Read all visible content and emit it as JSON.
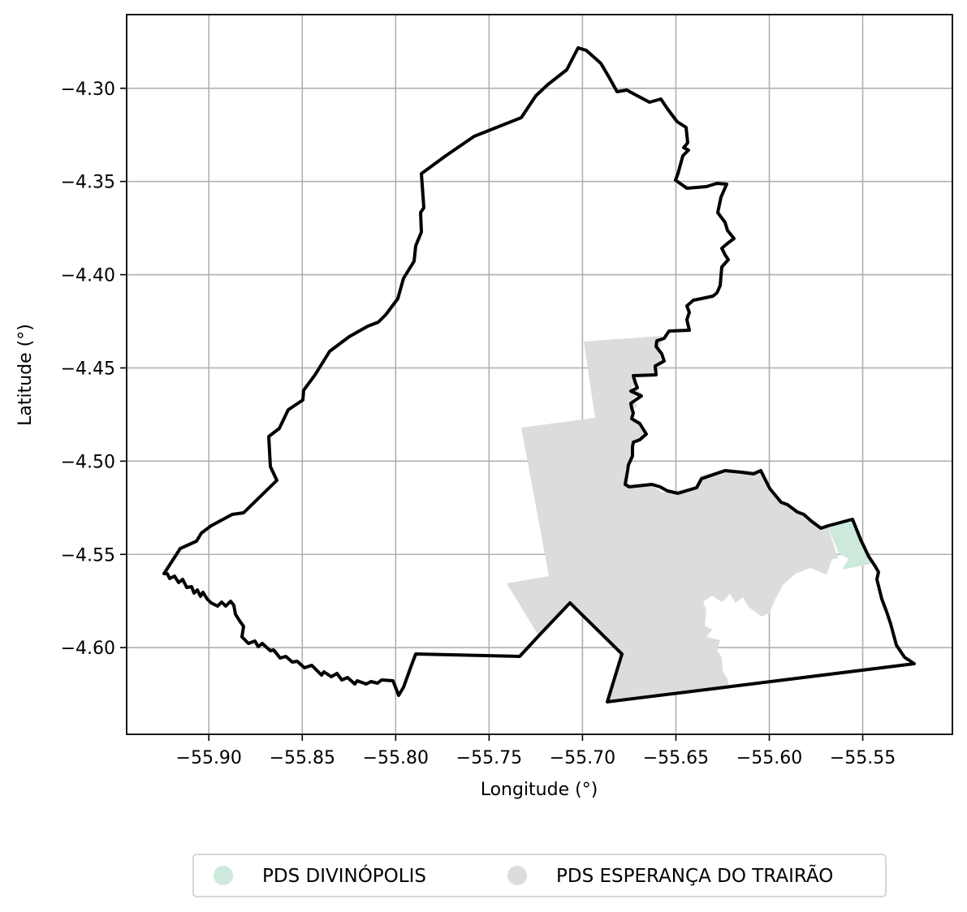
{
  "map": {
    "xlabel": "Longitude (°)",
    "ylabel": "Latitude (°)",
    "x_ticks": [
      "−55.90",
      "−55.85",
      "−55.80",
      "−55.75",
      "−55.70",
      "−55.65",
      "−55.60",
      "−55.55"
    ],
    "y_ticks": [
      "−4.30",
      "−4.35",
      "−4.40",
      "−4.45",
      "−4.50",
      "−4.55",
      "−4.60"
    ],
    "x_tick_values": [
      -55.9,
      -55.85,
      -55.8,
      -55.75,
      -55.7,
      -55.65,
      -55.6,
      -55.55
    ],
    "y_tick_values": [
      -4.3,
      -4.35,
      -4.4,
      -4.45,
      -4.5,
      -4.55,
      -4.6
    ],
    "xlim": [
      -55.944,
      -55.502
    ],
    "ylim": [
      -4.6465,
      -4.2605
    ],
    "grid": true,
    "legend_position": "bottom-center",
    "legend": [
      {
        "label": "PDS DIVINÓPOLIS",
        "color": "#cde9dc"
      },
      {
        "label": "PDS ESPERANÇA DO TRAIRÃO",
        "color": "#dcdcdc"
      }
    ],
    "boundary_color": "#000000"
  }
}
